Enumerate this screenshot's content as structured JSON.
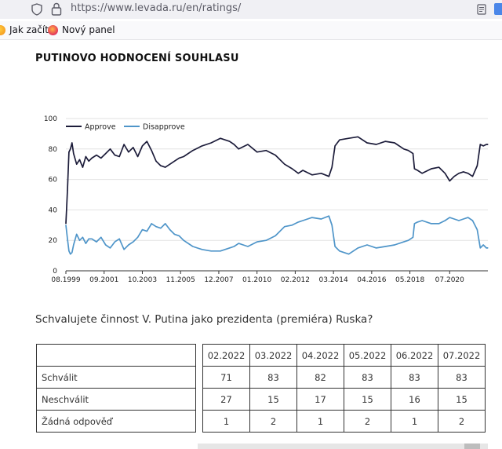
{
  "browser": {
    "url": "https://www.levada.ru/en/ratings/",
    "bookmarks": [
      "Jak začít",
      "Nový panel"
    ]
  },
  "page": {
    "title": "PUTINOVO HODNOCENÍ SOUHLASU",
    "question": "Schvalujete činnost V. Putina jako prezidenta (premiéra) Ruska?"
  },
  "table": {
    "months": [
      "02.2022",
      "03.2022",
      "04.2022",
      "05.2022",
      "06.2022",
      "07.2022"
    ],
    "rows": [
      {
        "label": "Schválit",
        "values": [
          "71",
          "83",
          "82",
          "83",
          "83",
          "83"
        ]
      },
      {
        "label": "Neschválit",
        "values": [
          "27",
          "15",
          "17",
          "15",
          "16",
          "15"
        ]
      },
      {
        "label": "Žádná odpověď",
        "values": [
          "1",
          "2",
          "1",
          "2",
          "1",
          "2"
        ]
      }
    ]
  },
  "chart_data": {
    "type": "line",
    "title": "PUTINOVO HODNOCENÍ SOUHLASU",
    "xlabel": "",
    "ylabel": "",
    "ylim": [
      0,
      100
    ],
    "yticks": [
      0,
      20,
      40,
      60,
      80,
      100
    ],
    "xlim": [
      1999.583,
      2022.583
    ],
    "xtick_labels": [
      "08.1999",
      "09.2001",
      "10.2003",
      "11.2005",
      "12.2007",
      "01.2010",
      "02.2012",
      "03.2014",
      "04.2016",
      "05.2018",
      "07.2020"
    ],
    "xtick_positions": [
      1999.583,
      2001.667,
      2003.75,
      2005.833,
      2007.917,
      2010.0,
      2012.083,
      2014.167,
      2016.25,
      2018.333,
      2020.5
    ],
    "legend": "top-left",
    "grid": "horizontal",
    "series": [
      {
        "name": "Approve",
        "color": "#1c1c3a",
        "x": [
          1999.583,
          1999.667,
          1999.75,
          1999.833,
          1999.917,
          2000.0,
          2000.167,
          2000.333,
          2000.5,
          2000.667,
          2000.833,
          2001.0,
          2001.25,
          2001.5,
          2001.75,
          2002.0,
          2002.25,
          2002.5,
          2002.75,
          2003.0,
          2003.25,
          2003.5,
          2003.75,
          2004.0,
          2004.25,
          2004.5,
          2004.75,
          2005.0,
          2005.25,
          2005.5,
          2005.75,
          2006.0,
          2006.5,
          2007.0,
          2007.5,
          2008.0,
          2008.5,
          2008.75,
          2009.0,
          2009.5,
          2010.0,
          2010.5,
          2011.0,
          2011.5,
          2011.917,
          2012.25,
          2012.5,
          2013.0,
          2013.5,
          2013.917,
          2014.083,
          2014.25,
          2014.5,
          2015.0,
          2015.5,
          2016.0,
          2016.5,
          2017.0,
          2017.5,
          2018.0,
          2018.25,
          2018.5,
          2018.583,
          2018.75,
          2019.0,
          2019.5,
          2019.917,
          2020.25,
          2020.5,
          2020.75,
          2021.0,
          2021.25,
          2021.5,
          2021.75,
          2022.0,
          2022.167,
          2022.333,
          2022.5,
          2022.583
        ],
        "y": [
          31,
          53,
          78,
          80,
          84,
          77,
          70,
          73,
          68,
          75,
          72,
          74,
          76,
          74,
          77,
          80,
          76,
          75,
          83,
          78,
          81,
          75,
          82,
          85,
          79,
          72,
          69,
          68,
          70,
          72,
          74,
          75,
          79,
          82,
          84,
          87,
          85,
          83,
          80,
          83,
          78,
          79,
          76,
          70,
          67,
          64,
          66,
          63,
          64,
          62,
          68,
          82,
          86,
          87,
          88,
          84,
          83,
          85,
          84,
          80,
          79,
          77,
          67,
          66,
          64,
          67,
          68,
          64,
          59,
          62,
          64,
          65,
          64,
          62,
          69,
          83,
          82,
          83,
          83
        ]
      },
      {
        "name": "Disapprove",
        "color": "#4f95c9",
        "x": [
          1999.583,
          1999.667,
          1999.75,
          1999.833,
          1999.917,
          2000.0,
          2000.167,
          2000.333,
          2000.5,
          2000.667,
          2000.833,
          2001.0,
          2001.25,
          2001.5,
          2001.75,
          2002.0,
          2002.25,
          2002.5,
          2002.75,
          2003.0,
          2003.25,
          2003.5,
          2003.75,
          2004.0,
          2004.25,
          2004.5,
          2004.75,
          2005.0,
          2005.25,
          2005.5,
          2005.75,
          2006.0,
          2006.5,
          2007.0,
          2007.5,
          2008.0,
          2008.5,
          2008.75,
          2009.0,
          2009.5,
          2010.0,
          2010.5,
          2011.0,
          2011.5,
          2011.917,
          2012.25,
          2012.5,
          2013.0,
          2013.5,
          2013.917,
          2014.083,
          2014.25,
          2014.5,
          2015.0,
          2015.5,
          2016.0,
          2016.5,
          2017.0,
          2017.5,
          2018.0,
          2018.25,
          2018.5,
          2018.583,
          2018.75,
          2019.0,
          2019.5,
          2019.917,
          2020.25,
          2020.5,
          2020.75,
          2021.0,
          2021.25,
          2021.5,
          2021.75,
          2022.0,
          2022.167,
          2022.333,
          2022.5,
          2022.583
        ],
        "y": [
          30,
          21,
          13,
          11,
          12,
          17,
          24,
          20,
          22,
          18,
          21,
          21,
          19,
          22,
          17,
          15,
          19,
          21,
          14,
          17,
          19,
          22,
          27,
          26,
          31,
          29,
          28,
          31,
          27,
          24,
          23,
          20,
          16,
          14,
          13,
          13,
          15,
          16,
          18,
          16,
          19,
          20,
          23,
          29,
          30,
          32,
          33,
          35,
          34,
          36,
          30,
          16,
          13,
          11,
          15,
          17,
          15,
          16,
          17,
          19,
          20,
          22,
          31,
          32,
          33,
          31,
          31,
          33,
          35,
          34,
          33,
          34,
          35,
          33,
          27,
          15,
          17,
          15,
          15
        ]
      }
    ]
  }
}
